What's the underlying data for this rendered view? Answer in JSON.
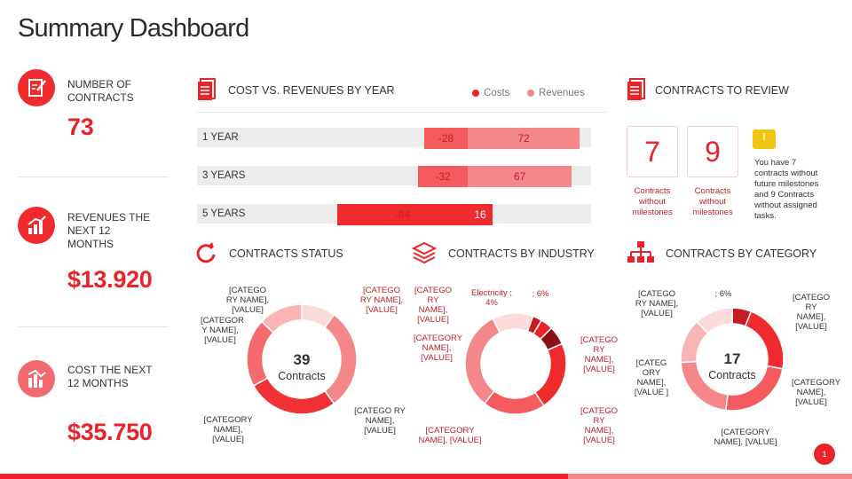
{
  "page": {
    "title": "Summary Dashboard",
    "page_number": "1"
  },
  "colors": {
    "accent": "#e8232a",
    "accent_dark": "#c41e24",
    "accent_light": "#f3878a",
    "gray": "#ececec"
  },
  "kpis": [
    {
      "icon": "contract-icon",
      "label": "NUMBER OF CONTRACTS",
      "value": "73"
    },
    {
      "icon": "revenue-chart-icon",
      "label": "REVENUES THE NEXT 12 MONTHS",
      "value": "$13.920"
    },
    {
      "icon": "cost-chart-icon",
      "label": "COST THE NEXT 12 MONTHS",
      "value": "$35.750"
    }
  ],
  "sections": {
    "cost_vs_revenues": "COST VS. REVENUES BY YEAR",
    "contracts_to_review": "CONTRACTS TO REVIEW",
    "contracts_status": "CONTRACTS STATUS",
    "contracts_by_industry": "CONTRACTS BY INDUSTRY",
    "contracts_by_category": "CONTRACTS BY CATEGORY"
  },
  "review": {
    "without_milestones_count": "7",
    "without_milestones_caption": "Contracts without milestones",
    "second_count": "9",
    "second_caption": "Contracts without milestones",
    "warning_glyph": "!",
    "note": "You have 7 contracts without future milestones and 9 Contracts without assigned tasks."
  },
  "chart_data": [
    {
      "type": "bar",
      "title": "COST VS. REVENUES BY YEAR",
      "orientation": "horizontal-diverging",
      "categories": [
        "1 YEAR",
        "3 YEARS",
        "5 YEARS"
      ],
      "series": [
        {
          "name": "Costs",
          "values": [
            -28,
            -32,
            -84
          ]
        },
        {
          "name": "Revenues",
          "values": [
            72,
            67,
            16
          ]
        }
      ],
      "legend": [
        "Costs",
        "Revenues"
      ],
      "xlim": [
        -100,
        100
      ]
    },
    {
      "type": "pie",
      "title": "CONTRACTS STATUS",
      "donut": true,
      "center_value": "39",
      "center_label": "Contracts",
      "labels": [
        "[CATEGORY NAME], [VALUE]",
        "[CATEGORY NAME], [VALUE]",
        "[CATEGORY NAME], [VALUE]",
        "[CATEGORY NAME], [VALUE]",
        "[CATEGORY NAME], [VALUE]"
      ],
      "label_texts": [
        "[CATEGO RY NAME], [VALUE]",
        "[CATEGO RY NAME], [VALUE]",
        "[CATEGORY NAME], [VALUE]",
        "[CATEGO RY NAME], [VALUE]",
        "[CATEGOR Y NAME], [VALUE]"
      ],
      "values": [
        10,
        30,
        27,
        20,
        13
      ]
    },
    {
      "type": "pie",
      "title": "CONTRACTS BY INDUSTRY",
      "donut": true,
      "labels": [
        "[CATEGORY NAME], [VALUE]",
        "Electricity; 4%",
        "; 6%",
        "[CATEGORY NAME], [VALUE]",
        "[CATEGORY NAME], [VALUE]",
        "[CATEGORY NAME], [VALUE]",
        "[CATEGORY NAME], [VALUE]"
      ],
      "label_texts": [
        "[CATEGO RY NAME], [VALUE]",
        "Electricity ; 4%",
        "; 6%",
        "[CATEGO RY NAME], [VALUE]",
        "[CATEGO RY NAME], [VALUE]",
        "[CATEGORY NAME], [VALUE]",
        "[CATEGORY NAME], [VALUE]"
      ],
      "values": [
        3,
        4,
        6,
        22,
        20,
        32,
        13
      ]
    },
    {
      "type": "pie",
      "title": "CONTRACTS BY CATEGORY",
      "donut": true,
      "center_value": "17",
      "center_label": "Contracts",
      "labels": [
        "; 6%",
        "[CATEGORY NAME], [VALUE]",
        "[CATEGORY NAME], [VALUE]",
        "[CATEGORY NAME], [VALUE]",
        "[CATEGORY NAME], [VALUE]",
        "[CATEGORY NAME], [VALUE]"
      ],
      "label_texts": [
        "; 6%",
        "[CATEGO RY NAME], [VALUE]",
        "[CATEGO RY NAME], [VALUE]",
        "[CATEGORY NAME], [VALUE]",
        "[CATEG ORY NAME], [VALUE ]",
        "[CATEGORY NAME], [VALUE]"
      ],
      "values": [
        6,
        22,
        24,
        22,
        14,
        12
      ]
    }
  ]
}
